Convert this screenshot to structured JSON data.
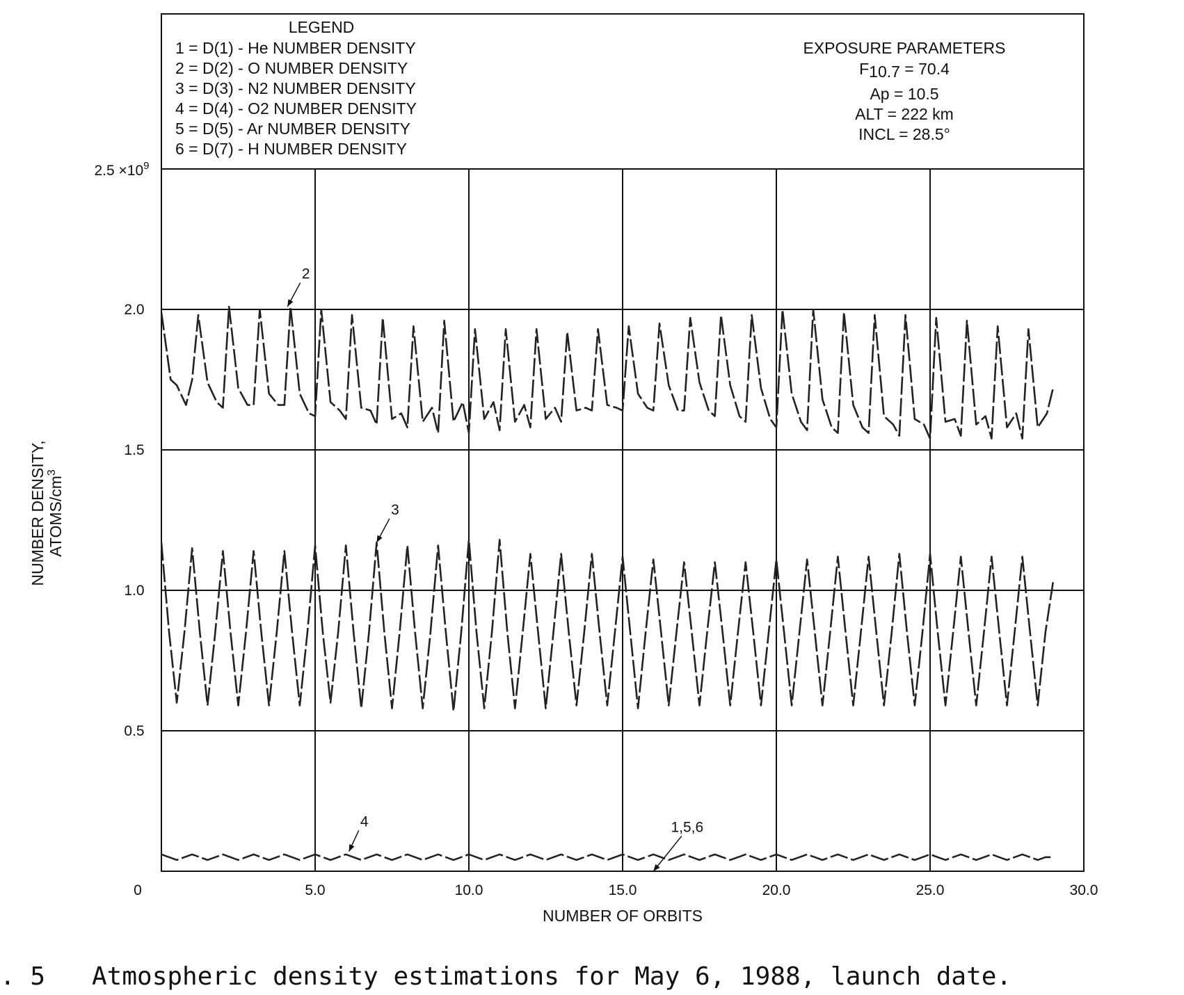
{
  "legend": {
    "title": "LEGEND",
    "items": [
      "1 = D(1) - He NUMBER DENSITY",
      "2 = D(2) - O NUMBER DENSITY",
      "3 = D(3) - N2 NUMBER DENSITY",
      "4 = D(4) - O2 NUMBER DENSITY",
      "5 = D(5) - Ar NUMBER DENSITY",
      "6 = D(7) - H NUMBER DENSITY"
    ]
  },
  "exposure": {
    "title": "EXPOSURE PARAMETERS",
    "f107_label": "F",
    "f107_sub": "10.7",
    "f107_value": " = 70.4",
    "ap": "Ap = 10.5",
    "alt": "ALT = 222 km",
    "incl": "INCL = 28.5°"
  },
  "caption": {
    "number": ". 5",
    "text": "Atmospheric density estimations for May 6, 1988, launch date."
  },
  "chart_data": {
    "type": "line",
    "xlabel": "NUMBER OF ORBITS",
    "ylabel_line1": "NUMBER DENSITY,",
    "ylabel_line2": "ATOMS/cm",
    "ylabel_sup": "3",
    "xlim": [
      0,
      30
    ],
    "ylim": [
      0,
      2.5
    ],
    "y_multiplier_label": "2.5 ×10",
    "y_multiplier_exp": "9",
    "x_ticks": [
      {
        "value": 0,
        "label": "0"
      },
      {
        "value": 5,
        "label": "5.0"
      },
      {
        "value": 10,
        "label": "10.0"
      },
      {
        "value": 15,
        "label": "15.0"
      },
      {
        "value": 20,
        "label": "20.0"
      },
      {
        "value": 25,
        "label": "25.0"
      },
      {
        "value": 30,
        "label": "30.0"
      }
    ],
    "y_ticks": [
      {
        "value": 0.5,
        "label": "0.5"
      },
      {
        "value": 1.0,
        "label": "1.0"
      },
      {
        "value": 1.5,
        "label": "1.5"
      },
      {
        "value": 2.0,
        "label": "2.0"
      }
    ],
    "grid": true,
    "series": [
      {
        "id": "2",
        "period": 1,
        "x": [
          0.0,
          0.3,
          0.5,
          0.8,
          1.0,
          1.2,
          1.5,
          1.8,
          2.0,
          2.2,
          2.5,
          2.8,
          3.0,
          3.2,
          3.5,
          3.8,
          4.0,
          4.2,
          4.5,
          4.8,
          5.0,
          5.2,
          5.5,
          5.8,
          6.0,
          6.2,
          6.5,
          6.8,
          7.0,
          7.2,
          7.5,
          7.8,
          8.0,
          8.2,
          8.5,
          8.8,
          9.0,
          9.2,
          9.5,
          9.8,
          10.0,
          10.2,
          10.5,
          10.8,
          11.0,
          11.2,
          11.5,
          11.8,
          12.0,
          12.2,
          12.5,
          12.8,
          13.0,
          13.2,
          13.5,
          13.8,
          14.0,
          14.2,
          14.5,
          14.8,
          15.0,
          15.2,
          15.5,
          15.8,
          16.0,
          16.2,
          16.5,
          16.8,
          17.0,
          17.2,
          17.5,
          17.8,
          18.0,
          18.2,
          18.5,
          18.8,
          19.0,
          19.2,
          19.5,
          19.8,
          20.0,
          20.2,
          20.5,
          20.8,
          21.0,
          21.2,
          21.5,
          21.8,
          22.0,
          22.2,
          22.5,
          22.8,
          23.0,
          23.2,
          23.5,
          23.8,
          24.0,
          24.2,
          24.5,
          24.8,
          25.0,
          25.2,
          25.5,
          25.8,
          26.0,
          26.2,
          26.5,
          26.8,
          27.0,
          27.2,
          27.5,
          27.8,
          28.0,
          28.2,
          28.5,
          28.8,
          29.0
        ],
        "values": [
          1.99,
          1.75,
          1.73,
          1.66,
          1.75,
          1.98,
          1.74,
          1.67,
          1.65,
          2.01,
          1.72,
          1.66,
          1.66,
          2.0,
          1.7,
          1.66,
          1.66,
          2.01,
          1.7,
          1.63,
          1.62,
          2.0,
          1.67,
          1.64,
          1.61,
          1.98,
          1.65,
          1.64,
          1.59,
          1.97,
          1.61,
          1.63,
          1.58,
          1.94,
          1.6,
          1.65,
          1.56,
          1.96,
          1.6,
          1.67,
          1.56,
          1.93,
          1.61,
          1.67,
          1.57,
          1.93,
          1.6,
          1.66,
          1.58,
          1.93,
          1.61,
          1.65,
          1.6,
          1.92,
          1.64,
          1.65,
          1.64,
          1.93,
          1.66,
          1.65,
          1.64,
          1.94,
          1.7,
          1.65,
          1.64,
          1.95,
          1.73,
          1.64,
          1.64,
          1.97,
          1.74,
          1.64,
          1.62,
          1.98,
          1.73,
          1.62,
          1.6,
          1.98,
          1.72,
          1.61,
          1.58,
          2.0,
          1.7,
          1.6,
          1.57,
          2.0,
          1.68,
          1.58,
          1.56,
          1.99,
          1.66,
          1.58,
          1.56,
          1.98,
          1.62,
          1.59,
          1.55,
          1.98,
          1.61,
          1.59,
          1.54,
          1.97,
          1.6,
          1.61,
          1.55,
          1.96,
          1.59,
          1.62,
          1.54,
          1.94,
          1.58,
          1.63,
          1.54,
          1.93,
          1.58,
          1.63,
          1.72
        ]
      },
      {
        "id": "3",
        "period": 1,
        "x": [
          0.0,
          0.25,
          0.5,
          0.75,
          1.0,
          1.25,
          1.5,
          1.75,
          2.0,
          2.25,
          2.5,
          2.75,
          3.0,
          3.25,
          3.5,
          3.75,
          4.0,
          4.25,
          4.5,
          4.75,
          5.0,
          5.25,
          5.5,
          5.75,
          6.0,
          6.25,
          6.5,
          6.75,
          7.0,
          7.25,
          7.5,
          7.75,
          8.0,
          8.25,
          8.5,
          8.75,
          9.0,
          9.25,
          9.5,
          9.75,
          10.0,
          10.25,
          10.5,
          10.75,
          11.0,
          11.25,
          11.5,
          11.75,
          12.0,
          12.25,
          12.5,
          12.75,
          13.0,
          13.25,
          13.5,
          13.75,
          14.0,
          14.25,
          14.5,
          14.75,
          15.0,
          15.25,
          15.5,
          15.75,
          16.0,
          16.25,
          16.5,
          16.75,
          17.0,
          17.25,
          17.5,
          17.75,
          18.0,
          18.25,
          18.5,
          18.75,
          19.0,
          19.25,
          19.5,
          19.75,
          20.0,
          20.25,
          20.5,
          20.75,
          21.0,
          21.25,
          21.5,
          21.75,
          22.0,
          22.25,
          22.5,
          22.75,
          23.0,
          23.25,
          23.5,
          23.75,
          24.0,
          24.25,
          24.5,
          24.75,
          25.0,
          25.25,
          25.5,
          25.75,
          26.0,
          26.25,
          26.5,
          26.75,
          27.0,
          27.25,
          27.5,
          27.75,
          28.0,
          28.25,
          28.5,
          28.75,
          29.0
        ],
        "values": [
          1.17,
          0.85,
          0.6,
          0.85,
          1.15,
          0.85,
          0.59,
          0.85,
          1.14,
          0.85,
          0.59,
          0.85,
          1.14,
          0.85,
          0.59,
          0.85,
          1.14,
          0.85,
          0.59,
          0.85,
          1.16,
          0.85,
          0.6,
          0.85,
          1.16,
          0.85,
          0.58,
          0.85,
          1.17,
          0.85,
          0.58,
          0.85,
          1.16,
          0.85,
          0.58,
          0.85,
          1.16,
          0.85,
          0.57,
          0.85,
          1.18,
          0.85,
          0.58,
          0.85,
          1.18,
          0.85,
          0.58,
          0.85,
          1.13,
          0.85,
          0.58,
          0.85,
          1.13,
          0.85,
          0.59,
          0.85,
          1.13,
          0.85,
          0.59,
          0.85,
          1.12,
          0.85,
          0.58,
          0.85,
          1.11,
          0.85,
          0.59,
          0.85,
          1.1,
          0.85,
          0.59,
          0.85,
          1.1,
          0.85,
          0.59,
          0.85,
          1.1,
          0.85,
          0.59,
          0.85,
          1.11,
          0.85,
          0.59,
          0.85,
          1.11,
          0.85,
          0.59,
          0.85,
          1.12,
          0.85,
          0.59,
          0.85,
          1.12,
          0.85,
          0.59,
          0.85,
          1.13,
          0.85,
          0.59,
          0.85,
          1.13,
          0.85,
          0.59,
          0.85,
          1.12,
          0.85,
          0.59,
          0.85,
          1.12,
          0.85,
          0.59,
          0.85,
          1.12,
          0.85,
          0.59,
          0.85,
          1.03
        ]
      },
      {
        "id": "4",
        "x": [
          0.0,
          0.25,
          0.5,
          0.75,
          1.0,
          1.25,
          1.5,
          1.75,
          2.0,
          2.25,
          2.5,
          2.75,
          3.0,
          3.25,
          3.5,
          3.75,
          4.0,
          4.25,
          4.5,
          4.75,
          5.0,
          5.25,
          5.5,
          5.75,
          6.0,
          6.25,
          6.5,
          6.75,
          7.0,
          7.25,
          7.5,
          7.75,
          8.0,
          8.25,
          8.5,
          8.75,
          9.0,
          9.25,
          9.5,
          9.75,
          10.0,
          10.25,
          10.5,
          10.75,
          11.0,
          11.25,
          11.5,
          11.75,
          12.0,
          12.25,
          12.5,
          12.75,
          13.0,
          13.25,
          13.5,
          13.75,
          14.0,
          14.25,
          14.5,
          14.75,
          15.0,
          15.25,
          15.5,
          15.75,
          16.0,
          16.25,
          16.5,
          16.75,
          17.0,
          17.25,
          17.5,
          17.75,
          18.0,
          18.25,
          18.5,
          18.75,
          19.0,
          19.25,
          19.5,
          19.75,
          20.0,
          20.25,
          20.5,
          20.75,
          21.0,
          21.25,
          21.5,
          21.75,
          22.0,
          22.25,
          22.5,
          22.75,
          23.0,
          23.25,
          23.5,
          23.75,
          24.0,
          24.25,
          24.5,
          24.75,
          25.0,
          25.25,
          25.5,
          25.75,
          26.0,
          26.25,
          26.5,
          26.75,
          27.0,
          27.25,
          27.5,
          27.75,
          28.0,
          28.25,
          28.5,
          28.75,
          29.0
        ],
        "values": [
          0.06,
          0.05,
          0.04,
          0.05,
          0.06,
          0.05,
          0.04,
          0.05,
          0.06,
          0.05,
          0.04,
          0.05,
          0.06,
          0.05,
          0.04,
          0.05,
          0.06,
          0.05,
          0.04,
          0.05,
          0.06,
          0.05,
          0.04,
          0.05,
          0.06,
          0.05,
          0.04,
          0.05,
          0.06,
          0.05,
          0.04,
          0.05,
          0.06,
          0.05,
          0.04,
          0.05,
          0.06,
          0.05,
          0.04,
          0.05,
          0.06,
          0.05,
          0.04,
          0.05,
          0.06,
          0.05,
          0.04,
          0.05,
          0.06,
          0.05,
          0.04,
          0.05,
          0.06,
          0.05,
          0.04,
          0.05,
          0.06,
          0.05,
          0.04,
          0.05,
          0.06,
          0.05,
          0.04,
          0.05,
          0.06,
          0.05,
          0.04,
          0.05,
          0.06,
          0.05,
          0.04,
          0.05,
          0.06,
          0.05,
          0.04,
          0.05,
          0.06,
          0.05,
          0.04,
          0.05,
          0.06,
          0.05,
          0.04,
          0.05,
          0.06,
          0.05,
          0.04,
          0.05,
          0.06,
          0.05,
          0.04,
          0.05,
          0.06,
          0.05,
          0.04,
          0.05,
          0.06,
          0.05,
          0.04,
          0.05,
          0.06,
          0.05,
          0.04,
          0.05,
          0.06,
          0.05,
          0.04,
          0.05,
          0.06,
          0.05,
          0.04,
          0.05,
          0.06,
          0.05,
          0.04,
          0.05,
          0.05
        ]
      }
    ],
    "annotations": [
      {
        "text": "2",
        "x": 4.7,
        "y": 2.11,
        "arrow_to": [
          4.1,
          2.01
        ]
      },
      {
        "text": "3",
        "x": 7.6,
        "y": 1.27,
        "arrow_to": [
          7.0,
          1.17
        ]
      },
      {
        "text": "4",
        "x": 6.6,
        "y": 0.16,
        "arrow_to": [
          6.1,
          0.07
        ]
      },
      {
        "text": "1,5,6",
        "x": 17.1,
        "y": 0.14,
        "arrow_to": [
          16.0,
          0.0
        ]
      }
    ]
  }
}
